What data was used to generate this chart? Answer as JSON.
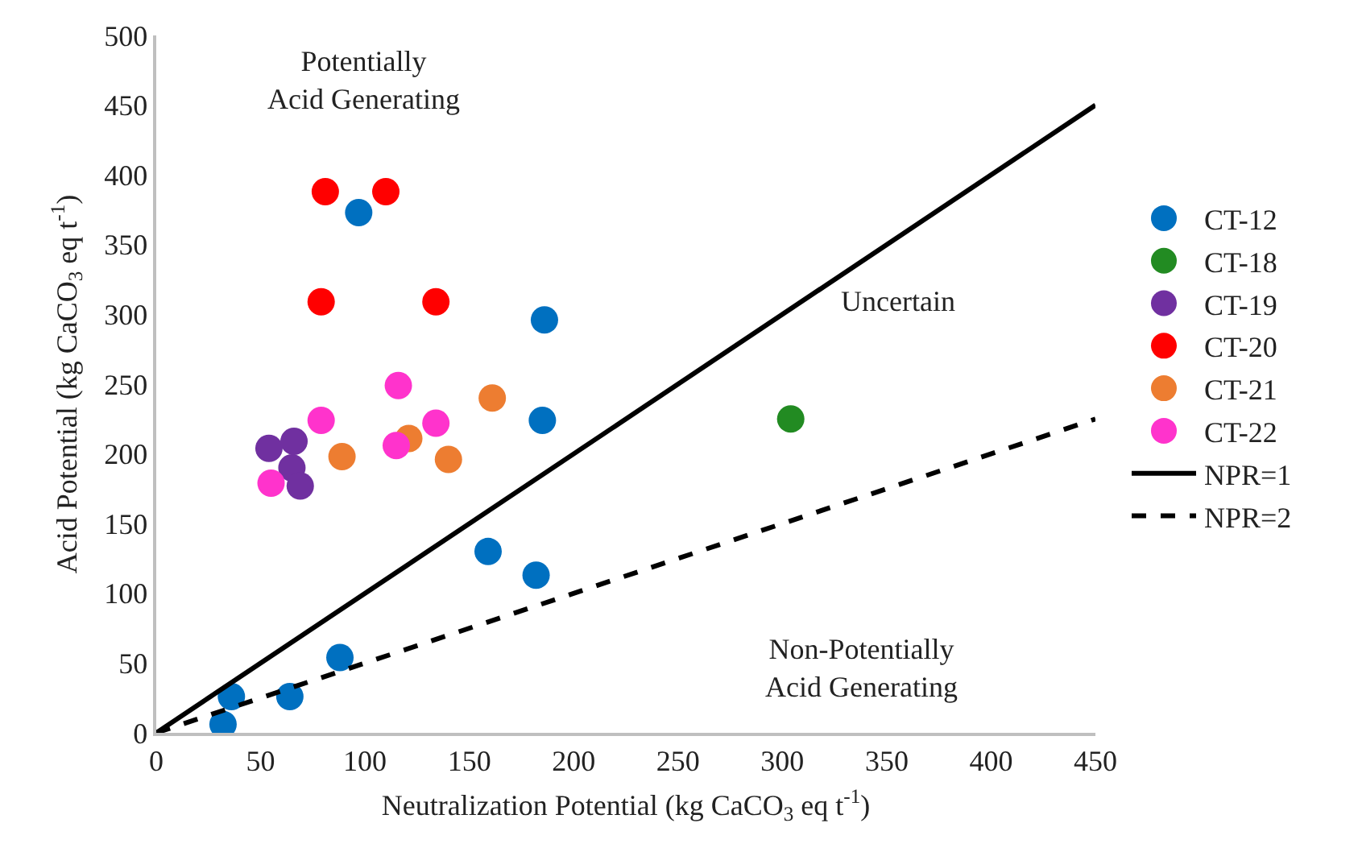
{
  "chart_data": {
    "type": "scatter",
    "xlabel": "Neutralization Potential (kg CaCO$_{3}$ eq t$^{-1}$)",
    "ylabel": "Acid Potential (kg CaCO$_{3}$ eq t$^{-1}$)",
    "xlim": [
      0,
      450
    ],
    "xticks": [
      0,
      50,
      100,
      150,
      200,
      250,
      300,
      350,
      400,
      450
    ],
    "ylim": [
      0,
      500
    ],
    "yticks": [
      0,
      50,
      100,
      150,
      200,
      250,
      300,
      350,
      400,
      450,
      500
    ],
    "grid": false,
    "legend": "right",
    "marker": "circle",
    "annotations": [
      "Potentially\nAcid Generating",
      "Uncertain",
      "Non-Potentially\nAcid Generating"
    ],
    "series": [
      {
        "name": "CT-12",
        "color": "#0070c0",
        "x": [
          97,
          186,
          185,
          159,
          182,
          88,
          36,
          64,
          32
        ],
        "values": [
          373,
          296,
          224,
          130,
          113,
          54,
          26,
          26,
          6
        ]
      },
      {
        "name": "CT-18",
        "color": "#228b22",
        "x": [
          304
        ],
        "values": [
          225
        ]
      },
      {
        "name": "CT-19",
        "color": "#7030a0",
        "x": [
          54,
          66,
          65,
          69
        ],
        "values": [
          204,
          209,
          190,
          177
        ]
      },
      {
        "name": "CT-20",
        "color": "#ff0000",
        "x": [
          81,
          110,
          79,
          134
        ],
        "values": [
          388,
          388,
          309,
          309
        ]
      },
      {
        "name": "CT-21",
        "color": "#ed7d31",
        "x": [
          161,
          121,
          89,
          140
        ],
        "values": [
          240,
          211,
          198,
          196
        ]
      },
      {
        "name": "CT-22",
        "color": "#ff33cc",
        "x": [
          116,
          79,
          134,
          115,
          55
        ],
        "values": [
          249,
          224,
          222,
          206,
          179
        ]
      },
      {
        "name": "NPR=1",
        "type": "line",
        "color": "#000000",
        "line_style": "solid",
        "marker": "none",
        "x": [
          0,
          450
        ],
        "values": [
          0,
          450
        ]
      },
      {
        "name": "NPR=2",
        "type": "line",
        "color": "#000000",
        "line_style": "dashed",
        "marker": "none",
        "x": [
          0,
          450
        ],
        "values": [
          0,
          225
        ]
      }
    ]
  }
}
